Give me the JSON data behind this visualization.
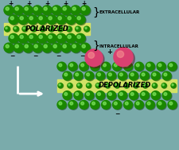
{
  "bg_color": "#7aabab",
  "green_dark": "#1a8800",
  "green_hi": "#88ee66",
  "green_shadow": "#003300",
  "yellow": "#dde860",
  "pink_main": "#d94070",
  "pink_hi": "#f59090",
  "pink_shadow": "#600020",
  "text_color": "#111111",
  "white": "#ffffff",
  "extracellular_label": "EXTRACELLULAR",
  "intracellular_label": "INTRACELLULAR",
  "polarized_label": "POLARIZED",
  "depolarized_label": "DEPOLARIZED",
  "top_bead_r": 6.0,
  "bot_bead_r": 5.5,
  "np_r": 11.0
}
